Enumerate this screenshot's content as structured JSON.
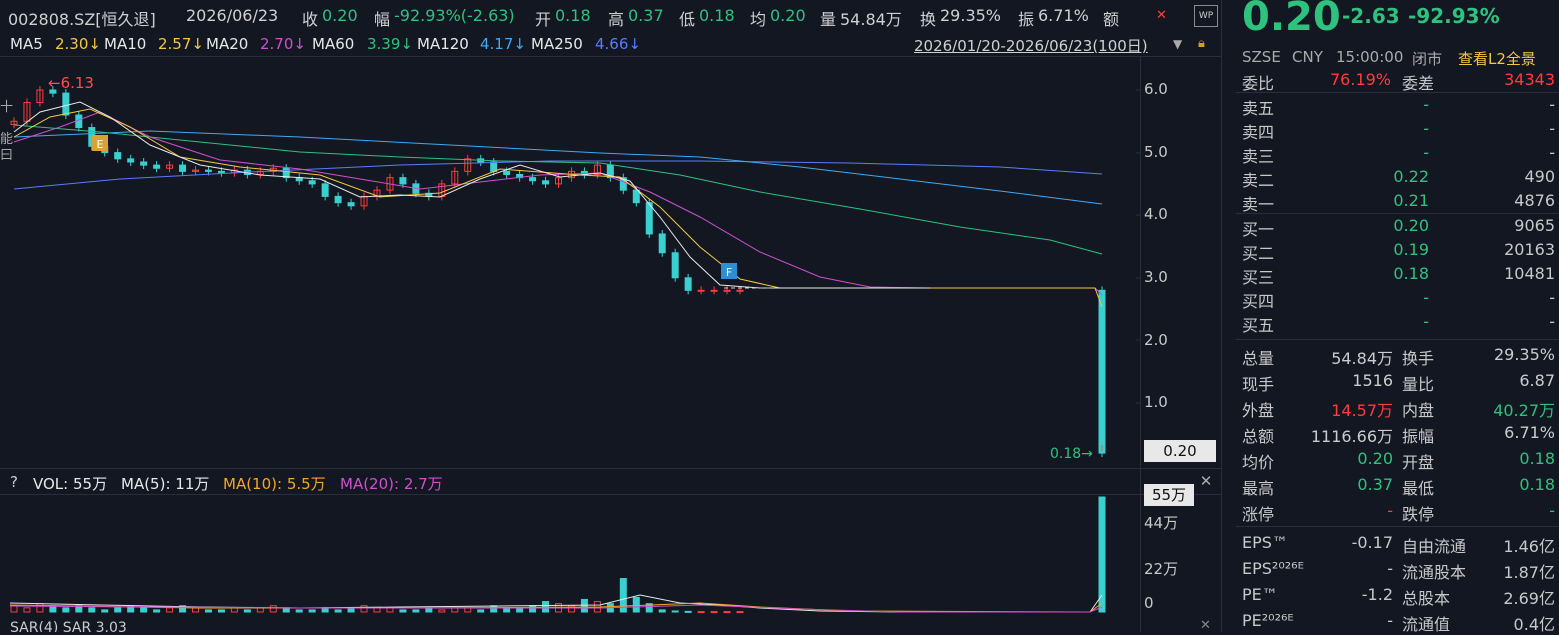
{
  "header": {
    "code": "002808.SZ[恒久退]",
    "date": "2026/06/23",
    "close_label": "收",
    "close": "0.20",
    "change_label": "幅",
    "change": "-92.93%(-2.63)",
    "open_label": "开",
    "open": "0.18",
    "high_label": "高",
    "high": "0.37",
    "low_label": "低",
    "low": "0.18",
    "avg_label": "均",
    "avg": "0.20",
    "vol_label": "量",
    "vol": "54.84万",
    "turn_label": "换",
    "turn": "29.35%",
    "amp_label": "振",
    "amp": "6.71%",
    "amt_label": "额"
  },
  "ma_bar": {
    "ma5": "MA5",
    "ma5_val": "2.30↓",
    "ma10": "MA10",
    "ma10_val": "2.57↓",
    "ma20": "MA20",
    "ma20_val": "2.70↓",
    "ma60": "MA60",
    "ma60_val": "3.39↓",
    "ma120": "MA120",
    "ma120_val": "4.17↓",
    "ma250": "MA250",
    "ma250_val": "4.66↓",
    "range": "2026/01/20-2026/06/23(100日)",
    "colors": {
      "ma5": "#e8e8e8",
      "ma10": "#f5c842",
      "ma20": "#d04fd0",
      "ma60": "#2ec27e",
      "ma120": "#3fa9f5",
      "ma250": "#5b7bff"
    }
  },
  "price_chart": {
    "y_ticks": [
      "6.0",
      "5.0",
      "4.0",
      "3.0",
      "2.0",
      "1.0"
    ],
    "high_marker": "6.13",
    "low_marker": "0.18",
    "last_price_tag": "0.20",
    "marker_e": "E",
    "marker_f": "F"
  },
  "volume_chart": {
    "help": "?",
    "vol_label": "VOL: 55万",
    "ma5": "MA(5): 11万",
    "ma10": "MA(10): 5.5万",
    "ma20": "MA(20): 2.7万",
    "y_ticks": [
      "44万",
      "22万",
      "0"
    ],
    "top_tag": "55万"
  },
  "bottom_strip": {
    "label": "SAR(4)   SAR 3.03"
  },
  "quote": {
    "price": "0.20",
    "change": "-2.63",
    "change_pct": "-92.93%",
    "exchange": "SZSE",
    "currency": "CNY",
    "time": "15:00:00",
    "status": "闭市",
    "l2_link": "查看L2全景",
    "weibi_label": "委比",
    "weibi": "76.19%",
    "weicha_label": "委差",
    "weicha": "34343",
    "asks": [
      {
        "label": "卖五",
        "price": "-",
        "vol": "-"
      },
      {
        "label": "卖四",
        "price": "-",
        "vol": "-"
      },
      {
        "label": "卖三",
        "price": "-",
        "vol": "-"
      },
      {
        "label": "卖二",
        "price": "0.22",
        "vol": "490"
      },
      {
        "label": "卖一",
        "price": "0.21",
        "vol": "4876"
      }
    ],
    "bids": [
      {
        "label": "买一",
        "price": "0.20",
        "vol": "9065"
      },
      {
        "label": "买二",
        "price": "0.19",
        "vol": "20163"
      },
      {
        "label": "买三",
        "price": "0.18",
        "vol": "10481"
      },
      {
        "label": "买四",
        "price": "-",
        "vol": "-"
      },
      {
        "label": "买五",
        "price": "-",
        "vol": "-"
      }
    ],
    "stats": [
      {
        "l1": "总量",
        "v1": "54.84万",
        "l2": "换手",
        "v2": "29.35%"
      },
      {
        "l1": "现手",
        "v1": "1516",
        "l2": "量比",
        "v2": "6.87"
      },
      {
        "l1": "外盘",
        "v1": "14.57万",
        "l2": "内盘",
        "v2": "40.27万"
      },
      {
        "l1": "总额",
        "v1": "1116.66万",
        "l2": "振幅",
        "v2": "6.71%"
      },
      {
        "l1": "均价",
        "v1": "0.20",
        "l2": "开盘",
        "v2": "0.18"
      },
      {
        "l1": "最高",
        "v1": "0.37",
        "l2": "最低",
        "v2": "0.18"
      },
      {
        "l1": "涨停",
        "v1": "-",
        "l2": "跌停",
        "v2": "-"
      }
    ],
    "fundamentals": [
      {
        "l1": "EPS™",
        "v1": "-0.17",
        "l2": "自由流通",
        "v2": "1.46亿"
      },
      {
        "l1": "EPS²⁰²⁶ᴱ",
        "v1": "-",
        "l2": "流通股本",
        "v2": "1.87亿"
      },
      {
        "l1": "PE™",
        "v1": "-1.2",
        "l2": "总股本",
        "v2": "2.69亿"
      },
      {
        "l1": "PE²⁰²⁶ᴱ",
        "v1": "-",
        "l2": "流通值",
        "v2": "0.4亿"
      }
    ]
  },
  "chart_data": {
    "type": "candlestick",
    "xlabel": "",
    "ylabel": "",
    "ylim": [
      0,
      6.5
    ],
    "candles_close_approx": [
      5.5,
      5.8,
      6.0,
      5.95,
      5.6,
      5.4,
      5.1,
      5.0,
      4.9,
      4.85,
      4.8,
      4.75,
      4.8,
      4.7,
      4.72,
      4.7,
      4.68,
      4.72,
      4.65,
      4.7,
      4.75,
      4.6,
      4.55,
      4.5,
      4.3,
      4.2,
      4.15,
      4.3,
      4.4,
      4.6,
      4.5,
      4.35,
      4.3,
      4.5,
      4.7,
      4.9,
      4.85,
      4.7,
      4.65,
      4.6,
      4.55,
      4.5,
      4.6,
      4.7,
      4.65,
      4.8,
      4.6,
      4.4,
      4.2,
      3.7,
      3.4,
      3.0,
      2.8,
      2.8,
      2.8,
      2.8,
      2.8,
      0.2
    ],
    "volume_wan": [
      3,
      2,
      4,
      3,
      2,
      3,
      2,
      1,
      2,
      3,
      2,
      1,
      2,
      3,
      2,
      1,
      1,
      2,
      1,
      2,
      3,
      2,
      1,
      1,
      2,
      1,
      2,
      3,
      2,
      2,
      1,
      1,
      2,
      1,
      2,
      2,
      1,
      3,
      2,
      2,
      3,
      5,
      4,
      3,
      6,
      5,
      4,
      16,
      7,
      4,
      1,
      0.5,
      0.3,
      0.2,
      0.2,
      0.2,
      0.2,
      55
    ]
  }
}
